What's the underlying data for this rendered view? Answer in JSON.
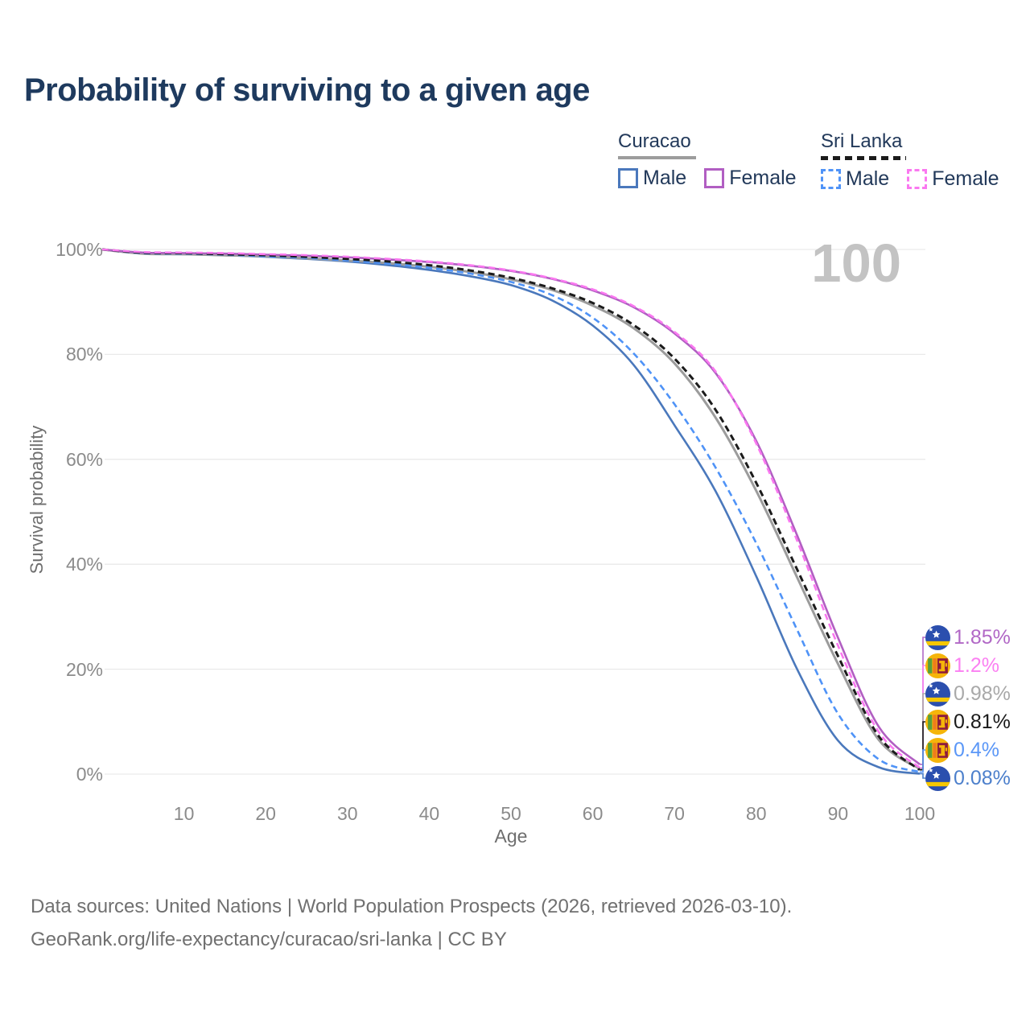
{
  "title": "Probability of surviving to a given age",
  "watermark": "100",
  "legend": {
    "groups": [
      {
        "label": "Curacao",
        "underline_style": "solid",
        "underline_color": "#9c9c9c",
        "items": [
          {
            "label": "Male",
            "swatch_style": "solid",
            "swatch_color": "#4a78bc"
          },
          {
            "label": "Female",
            "swatch_style": "solid",
            "swatch_color": "#b15ec2"
          }
        ]
      },
      {
        "label": "Sri Lanka",
        "underline_style": "dashed",
        "underline_color": "#1b1b1b",
        "items": [
          {
            "label": "Male",
            "swatch_style": "dashed",
            "swatch_color": "#4f93f7"
          },
          {
            "label": "Female",
            "swatch_style": "dashed",
            "swatch_color": "#fa78f0"
          }
        ]
      }
    ]
  },
  "chart_data": {
    "type": "line",
    "title": "Probability of surviving to a given age",
    "xlabel": "Age",
    "ylabel": "Survival probability",
    "xlim": [
      0,
      100
    ],
    "ylim": [
      0,
      100
    ],
    "grid": true,
    "x_ticks": [
      10,
      20,
      30,
      40,
      50,
      60,
      70,
      80,
      90,
      100
    ],
    "y_ticks": [
      {
        "label": "0%",
        "value": 0
      },
      {
        "label": "20%",
        "value": 20
      },
      {
        "label": "40%",
        "value": 40
      },
      {
        "label": "60%",
        "value": 60
      },
      {
        "label": "80%",
        "value": 80
      },
      {
        "label": "100%",
        "value": 100
      }
    ],
    "ages": [
      0,
      5,
      10,
      15,
      20,
      25,
      30,
      35,
      40,
      45,
      50,
      55,
      60,
      65,
      70,
      75,
      80,
      85,
      90,
      95,
      100
    ],
    "series": [
      {
        "key": "cw_male",
        "name": "Curacao Male",
        "country": "Curacao",
        "sex": "Male",
        "style": "solid",
        "color": "#4a78bc",
        "width": 2.6,
        "end_value_pct": 0.08,
        "values": [
          100,
          99.2,
          99.1,
          98.9,
          98.6,
          98.2,
          97.7,
          97.0,
          96.1,
          94.9,
          93.2,
          90.3,
          85.5,
          78.0,
          66.5,
          54.0,
          37.7,
          20.0,
          6.4,
          1.3,
          0.08
        ]
      },
      {
        "key": "cw_total",
        "name": "Curacao",
        "country": "Curacao",
        "sex": "Both",
        "style": "solid",
        "color": "#9c9c9c",
        "width": 3,
        "end_value_pct": 0.98,
        "values": [
          100,
          99.2,
          99.1,
          98.9,
          98.7,
          98.3,
          97.9,
          97.4,
          96.7,
          95.7,
          94.3,
          92.3,
          89.3,
          85.0,
          78.3,
          68.0,
          54.0,
          37.5,
          21.0,
          6.5,
          0.98
        ]
      },
      {
        "key": "cw_female",
        "name": "Curacao Female",
        "country": "Curacao",
        "sex": "Female",
        "style": "solid",
        "color": "#b15ec2",
        "width": 2.6,
        "end_value_pct": 1.85,
        "values": [
          100,
          99.4,
          99.3,
          99.2,
          99.0,
          98.8,
          98.5,
          98.1,
          97.6,
          96.9,
          95.9,
          94.4,
          92.2,
          89.0,
          84.0,
          76.5,
          63.5,
          45.5,
          26.0,
          9.0,
          1.85
        ]
      },
      {
        "key": "sl_male",
        "name": "Sri Lanka Male",
        "country": "Sri Lanka",
        "sex": "Male",
        "style": "dashed",
        "color": "#4f93f7",
        "width": 2.6,
        "end_value_pct": 0.4,
        "values": [
          100,
          99.3,
          99.2,
          99.0,
          98.7,
          98.4,
          97.9,
          97.3,
          96.5,
          95.4,
          93.8,
          91.3,
          87.0,
          80.2,
          70.5,
          58.5,
          44.0,
          27.5,
          11.5,
          2.8,
          0.4
        ]
      },
      {
        "key": "sl_total",
        "name": "Sri Lanka",
        "country": "Sri Lanka",
        "sex": "Both",
        "style": "dashed",
        "color": "#1b1b1b",
        "width": 3,
        "end_value_pct": 0.81,
        "values": [
          100,
          99.4,
          99.3,
          99.1,
          98.9,
          98.6,
          98.2,
          97.7,
          97.0,
          96.0,
          94.6,
          92.6,
          89.8,
          85.6,
          79.2,
          69.5,
          55.5,
          39.0,
          22.5,
          7.2,
          0.81
        ]
      },
      {
        "key": "sl_female",
        "name": "Sri Lanka Female",
        "country": "Sri Lanka",
        "sex": "Female",
        "style": "dashed",
        "color": "#fa78f0",
        "width": 2.6,
        "end_value_pct": 1.2,
        "values": [
          100,
          99.5,
          99.4,
          99.3,
          99.1,
          98.9,
          98.6,
          98.2,
          97.7,
          97.0,
          96.0,
          94.5,
          92.4,
          89.2,
          84.3,
          76.8,
          63.0,
          44.5,
          24.5,
          8.0,
          1.2
        ]
      }
    ],
    "end_labels": [
      {
        "series": "cw_female",
        "flag": "curacao",
        "value": "1.85%",
        "color": "#b168c6"
      },
      {
        "series": "sl_female",
        "flag": "sri-lanka",
        "value": "1.2%",
        "color": "#fb80f2"
      },
      {
        "series": "cw_total",
        "flag": "curacao",
        "value": "0.98%",
        "color": "#a9a9a9"
      },
      {
        "series": "sl_total",
        "flag": "sri-lanka",
        "value": "0.81%",
        "color": "#1a1a1a"
      },
      {
        "series": "sl_male",
        "flag": "sri-lanka",
        "value": "0.4%",
        "color": "#5b97f7"
      },
      {
        "series": "cw_male",
        "flag": "curacao",
        "value": "0.08%",
        "color": "#4d80cc"
      }
    ],
    "legend_position": "top-right"
  },
  "footer": {
    "line1": "Data sources: United Nations | World Population Prospects (2026, retrieved 2026-03-10).",
    "line2": "GeoRank.org/life-expectancy/curacao/sri-lanka | CC BY"
  }
}
